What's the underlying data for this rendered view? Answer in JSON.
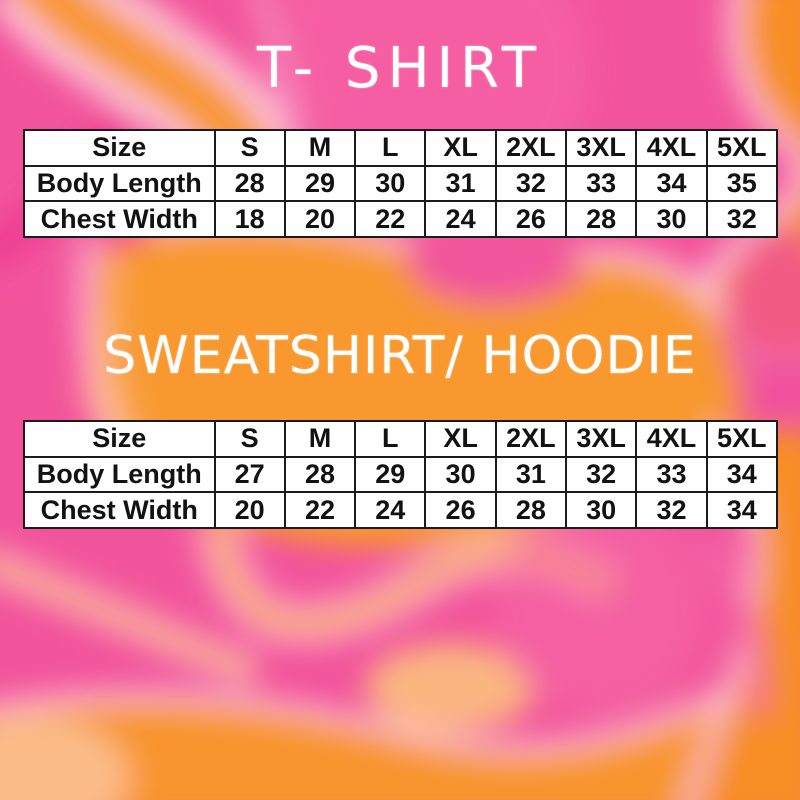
{
  "page": {
    "kind": "apparel-size-chart-graphic"
  },
  "colors": {
    "background_pink": "#f2549b",
    "background_magenta": "#ee3e94",
    "background_orange": "#f8952d",
    "background_halo_pink": "#fdcbde",
    "background_halo_cream": "#ffd9ad",
    "title_text": "#ffffff",
    "table_background": "#fefefe",
    "table_border": "#1b1b1b",
    "table_text": "#121212"
  },
  "charts": [
    {
      "title": "T- SHIRT",
      "table": {
        "header": [
          "Size",
          "S",
          "M",
          "L",
          "XL",
          "2XL",
          "3XL",
          "4XL",
          "5XL"
        ],
        "rows": [
          [
            "Body Length",
            "28",
            "29",
            "30",
            "31",
            "32",
            "33",
            "34",
            "35"
          ],
          [
            "Chest Width",
            "18",
            "20",
            "22",
            "24",
            "26",
            "28",
            "30",
            "32"
          ]
        ]
      }
    },
    {
      "title": "SWEATSHIRT/ HOODIE",
      "table": {
        "header": [
          "Size",
          "S",
          "M",
          "L",
          "XL",
          "2XL",
          "3XL",
          "4XL",
          "5XL"
        ],
        "rows": [
          [
            "Body Length",
            "27",
            "28",
            "29",
            "30",
            "31",
            "32",
            "33",
            "34"
          ],
          [
            "Chest Width",
            "20",
            "22",
            "24",
            "26",
            "28",
            "30",
            "32",
            "34"
          ]
        ]
      }
    }
  ]
}
